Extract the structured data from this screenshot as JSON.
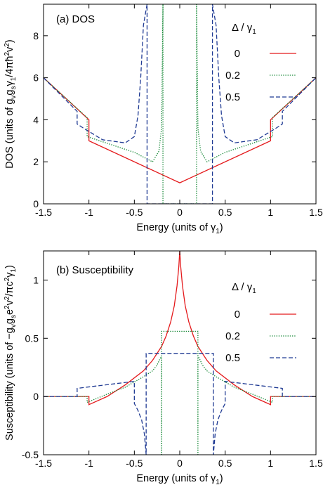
{
  "chart_data": [
    {
      "type": "line",
      "panel_id": "dos",
      "title": "(a) DOS",
      "xlabel": "Energy (units of γ₁)",
      "ylabel": "DOS (units of g_v g_s γ₁ / 4πħ²v²)",
      "xlim": [
        -1.5,
        1.5
      ],
      "ylim": [
        0,
        9.5
      ],
      "xticks": [
        "-1.5",
        "-1",
        "-0.5",
        "0",
        "0.5",
        "1",
        "1.5"
      ],
      "yticks": [
        "0",
        "2",
        "4",
        "6",
        "8"
      ],
      "legend_title": "Δ / γ₁",
      "legend_position": "top-right",
      "series": [
        {
          "name": "0",
          "color": "#e41a1c",
          "dash": "solid",
          "x": [
            -1.5,
            -1.0,
            -1.0,
            0.0,
            1.0,
            1.0,
            1.5
          ],
          "y": [
            6.0,
            4.0,
            3.0,
            1.0,
            3.0,
            4.0,
            6.0
          ]
        },
        {
          "name": "0.2",
          "color": "#1a8a3a",
          "dash": "dotted",
          "x": [
            -1.5,
            -1.02,
            -1.02,
            -0.5,
            -0.3,
            -0.23,
            -0.2,
            -0.185,
            -0.185,
            0.185,
            0.185,
            0.2,
            0.23,
            0.3,
            0.5,
            1.02,
            1.02,
            1.5
          ],
          "y": [
            6.0,
            4.1,
            3.2,
            2.45,
            2.0,
            2.5,
            3.6,
            9.5,
            0,
            0,
            9.5,
            3.6,
            2.5,
            2.0,
            2.45,
            3.2,
            4.1,
            6.0
          ]
        },
        {
          "name": "0.5",
          "color": "#1f3a93",
          "dash": "dashed",
          "x": [
            -1.5,
            -1.13,
            -1.13,
            -1.06,
            -0.85,
            -0.6,
            -0.5,
            -0.46,
            -0.43,
            -0.4,
            -0.36,
            -0.36,
            0.36,
            0.36,
            0.4,
            0.43,
            0.46,
            0.5,
            0.6,
            0.85,
            1.06,
            1.13,
            1.13,
            1.5
          ],
          "y": [
            6.0,
            4.4,
            3.8,
            3.6,
            3.05,
            2.9,
            3.2,
            4.2,
            6.0,
            8.5,
            9.5,
            0,
            0,
            9.5,
            8.5,
            6.0,
            4.2,
            3.2,
            2.9,
            3.05,
            3.6,
            3.8,
            4.4,
            6.0
          ]
        }
      ]
    },
    {
      "type": "line",
      "panel_id": "susceptibility",
      "title": "(b) Susceptibility",
      "xlabel": "Energy (units of γ₁)",
      "ylabel": "Susceptibility (units of −g_v g_s e²v² / πc² γ₁)",
      "xlim": [
        -1.5,
        1.5
      ],
      "ylim": [
        -0.5,
        1.25
      ],
      "xticks": [
        "-1.5",
        "-1",
        "-0.5",
        "0",
        "0.5",
        "1",
        "1.5"
      ],
      "yticks": [
        "-0.5",
        "0",
        "0.5",
        "1"
      ],
      "legend_title": "Δ / γ₁",
      "legend_position": "top-right",
      "series": [
        {
          "name": "0",
          "color": "#e41a1c",
          "dash": "solid",
          "x": [
            -1.5,
            -1.0,
            -1.0,
            -0.8,
            -0.6,
            -0.4,
            -0.3,
            -0.2,
            -0.15,
            -0.1,
            -0.06,
            -0.03,
            -0.01,
            0.0,
            0.01,
            0.03,
            0.06,
            0.1,
            0.15,
            0.2,
            0.3,
            0.4,
            0.6,
            0.8,
            1.0,
            1.0,
            1.5
          ],
          "y": [
            0.0,
            0.0,
            -0.07,
            0.0,
            0.1,
            0.22,
            0.31,
            0.43,
            0.52,
            0.64,
            0.78,
            0.95,
            1.12,
            1.25,
            1.12,
            0.95,
            0.78,
            0.64,
            0.52,
            0.43,
            0.31,
            0.22,
            0.1,
            0.0,
            -0.07,
            0.0,
            0.0
          ]
        },
        {
          "name": "0.2",
          "color": "#1a8a3a",
          "dash": "dotted",
          "x": [
            -1.5,
            -1.02,
            -1.02,
            -0.8,
            -0.6,
            -0.4,
            -0.3,
            -0.25,
            -0.22,
            -0.2,
            -0.2,
            -0.2,
            0.2,
            0.2,
            0.2,
            0.22,
            0.25,
            0.3,
            0.4,
            0.6,
            0.8,
            1.02,
            1.02,
            1.5
          ],
          "y": [
            0.0,
            0.0,
            -0.05,
            0.02,
            0.08,
            0.17,
            0.22,
            0.27,
            0.32,
            0.35,
            -0.5,
            0.56,
            0.56,
            -0.5,
            0.35,
            0.32,
            0.27,
            0.22,
            0.17,
            0.08,
            0.02,
            -0.05,
            0.0,
            0.0
          ]
        },
        {
          "name": "0.5",
          "color": "#1f3a93",
          "dash": "dashed",
          "x": [
            -1.5,
            -1.13,
            -1.13,
            -0.5,
            -0.5,
            -0.46,
            -0.42,
            -0.39,
            -0.37,
            -0.37,
            -0.37,
            0.37,
            0.37,
            0.37,
            0.39,
            0.42,
            0.46,
            0.5,
            0.5,
            1.13,
            1.13,
            1.5
          ],
          "y": [
            0.0,
            0.0,
            0.07,
            0.13,
            -0.06,
            -0.12,
            -0.2,
            -0.32,
            -0.5,
            -0.5,
            0.37,
            0.37,
            -0.5,
            -0.5,
            -0.32,
            -0.2,
            -0.12,
            -0.06,
            0.13,
            0.07,
            0.0,
            0.0
          ]
        }
      ]
    }
  ]
}
